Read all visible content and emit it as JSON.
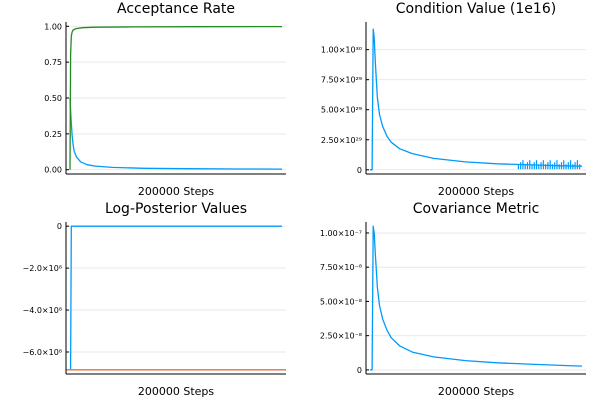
{
  "chart_data": [
    {
      "type": "line",
      "title": "Acceptance Rate",
      "xlabel": "200000 Steps",
      "ylabel": "",
      "ylim": [
        -0.03,
        1.03
      ],
      "y_ticks": [
        {
          "value": 0.0,
          "label": "0.00"
        },
        {
          "value": 0.25,
          "label": "0.25"
        },
        {
          "value": 0.5,
          "label": "0.50"
        },
        {
          "value": 0.75,
          "label": "0.75"
        },
        {
          "value": 1.0,
          "label": "1.00"
        }
      ],
      "x_ticks": false,
      "grid": true,
      "legend": "none",
      "series": [
        {
          "color": "#009AFA",
          "x": [
            0,
            0.005,
            0.01,
            0.015,
            0.02,
            0.03,
            0.05,
            0.08,
            0.12,
            0.2,
            0.35,
            0.55,
            0.8,
            1.0
          ],
          "values": [
            0.5,
            0.35,
            0.24,
            0.17,
            0.13,
            0.09,
            0.055,
            0.035,
            0.025,
            0.016,
            0.01,
            0.007,
            0.005,
            0.004
          ]
        },
        {
          "color": "#228B22",
          "x": [
            0,
            0.003,
            0.006,
            0.01,
            0.015,
            0.03,
            0.06,
            0.12,
            0.3,
            0.6,
            1.0
          ],
          "values": [
            0.0,
            0.8,
            0.93,
            0.96,
            0.975,
            0.985,
            0.99,
            0.994,
            0.996,
            0.997,
            0.998
          ]
        }
      ]
    },
    {
      "type": "line",
      "title": "Condition Value (1e16)",
      "xlabel": "200000 Steps",
      "ylabel": "",
      "ylim": [
        -3.5e+28,
        1.23e+30
      ],
      "y_ticks": [
        {
          "value": 0,
          "label": "0"
        },
        {
          "value": 2.5e+29,
          "label": "2.50×10²⁹"
        },
        {
          "value": 5e+29,
          "label": "5.00×10²⁹"
        },
        {
          "value": 7.5e+29,
          "label": "7.50×10²⁹"
        },
        {
          "value": 1e+30,
          "label": "1.00×10³⁰"
        }
      ],
      "x_ticks": false,
      "grid": true,
      "legend": "none",
      "series": [
        {
          "color": "#009AFA",
          "x": [
            0,
            0.01,
            0.015,
            0.02,
            0.025,
            0.03,
            0.035,
            0.045,
            0.06,
            0.08,
            0.1,
            0.14,
            0.2,
            0.3,
            0.45,
            0.6,
            0.78,
            0.9,
            1.0
          ],
          "values": [
            0,
            0,
            1.17e+30,
            1.1e+30,
            9e+29,
            7.4e+29,
            6e+29,
            4.6e+29,
            3.6e+29,
            2.8e+29,
            2.3e+29,
            1.75e+29,
            1.35e+29,
            9.5e+28,
            6.6e+28,
            5e+28,
            4e+28,
            3.3e+28,
            3e+28
          ]
        }
      ]
    },
    {
      "type": "line",
      "title": "Log-Posterior Values",
      "xlabel": "200000 Steps",
      "ylabel": "",
      "ylim": [
        -705000000.0,
        20000000.0
      ],
      "y_ticks": [
        {
          "value": 0,
          "label": "0"
        },
        {
          "value": -200000000.0,
          "label": "−2.0×10⁸"
        },
        {
          "value": -400000000.0,
          "label": "−4.0×10⁸"
        },
        {
          "value": -600000000.0,
          "label": "−6.0×10⁸"
        }
      ],
      "x_ticks": false,
      "grid": true,
      "legend": "none",
      "series": [
        {
          "color": "#009AFA",
          "x": [
            0,
            0.003,
            0.006,
            1.0
          ],
          "values": [
            -680000000.0,
            -680000000.0,
            -200000.0,
            -200000.0
          ]
        },
        {
          "color": "#E26F46",
          "x": [
            -0.05,
            1.05
          ],
          "values": [
            -685000000.0,
            -685000000.0
          ]
        }
      ]
    },
    {
      "type": "line",
      "title": "Covariance Metric",
      "xlabel": "200000 Steps",
      "ylabel": "",
      "ylim": [
        -3e-09,
        1.08e-07
      ],
      "y_ticks": [
        {
          "value": 0,
          "label": "0"
        },
        {
          "value": 2.5e-08,
          "label": "2.50×10⁻⁸"
        },
        {
          "value": 5e-08,
          "label": "5.00×10⁻⁸"
        },
        {
          "value": 7.5e-08,
          "label": "7.50×10⁻⁸"
        },
        {
          "value": 1e-07,
          "label": "1.00×10⁻⁷"
        }
      ],
      "x_ticks": false,
      "grid": true,
      "legend": "none",
      "series": [
        {
          "color": "#009AFA",
          "x": [
            0,
            0.01,
            0.015,
            0.02,
            0.025,
            0.03,
            0.035,
            0.045,
            0.06,
            0.08,
            0.1,
            0.14,
            0.2,
            0.3,
            0.45,
            0.6,
            0.78,
            0.9,
            1.0
          ],
          "values": [
            0,
            0,
            1.05e-07,
            1e-07,
            8.5e-08,
            7.2e-08,
            6e-08,
            4.7e-08,
            3.7e-08,
            2.9e-08,
            2.35e-08,
            1.75e-08,
            1.3e-08,
            9.5e-09,
            6.8e-09,
            5.2e-09,
            4e-09,
            3.3e-09,
            2.8e-09
          ]
        }
      ]
    }
  ]
}
